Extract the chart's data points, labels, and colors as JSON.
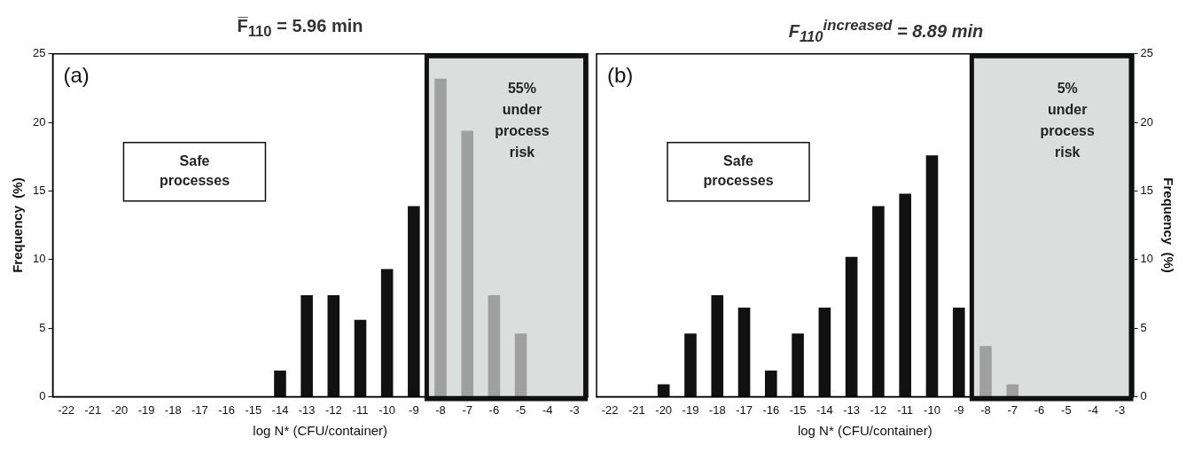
{
  "chart_data": [
    {
      "type": "bar",
      "title": "F̅$_{110}$ = 5.96  min",
      "xlabel": "log N* (CFU/container)",
      "ylabel": "Frequency  (%)",
      "x": [
        -22,
        -21,
        -20,
        -19,
        -18,
        -17,
        -16,
        -15,
        -14,
        -13,
        -12,
        -11,
        -10,
        -9,
        -8,
        -7,
        -6,
        -5,
        -4,
        -3
      ],
      "values": [
        0,
        0,
        0,
        0,
        0,
        0,
        0,
        0,
        1.9,
        7.4,
        7.4,
        5.6,
        9.3,
        13.9,
        23.2,
        19.4,
        7.4,
        4.6,
        0,
        0
      ],
      "colors": [
        "#111111",
        "#111111",
        "#111111",
        "#111111",
        "#111111",
        "#111111",
        "#111111",
        "#111111",
        "#111111",
        "#111111",
        "#111111",
        "#111111",
        "#111111",
        "#111111",
        "#a0a0a0",
        "#a0a0a0",
        "#a0a0a0",
        "#a0a0a0",
        "#a0a0a0",
        "#a0a0a0"
      ],
      "xlim": [
        -22.5,
        -2.5
      ],
      "xticks": [
        -22,
        -21,
        -20,
        -19,
        -18,
        -17,
        -16,
        -15,
        -14,
        -13,
        -12,
        -11,
        -10,
        -9,
        -8,
        -7,
        -6,
        -5,
        -4,
        -3
      ],
      "ylim": [
        0,
        25
      ],
      "yticks": [
        0,
        5,
        10,
        15,
        20,
        25
      ],
      "bands": [
        {
          "axis": "x",
          "from": -8.6,
          "to": -2.5,
          "label": "55% under process risk",
          "color": "#dcdddd"
        }
      ],
      "annotations": [
        "(a)",
        "Safe processes"
      ],
      "grid": false,
      "legend": false
    },
    {
      "type": "bar",
      "title": "F$_{110}$$^{increased}$ = 8.89  min",
      "xlabel": "log N* (CFU/container)",
      "ylabel": "Frequency  (%)",
      "x": [
        -22,
        -21,
        -20,
        -19,
        -18,
        -17,
        -16,
        -15,
        -14,
        -13,
        -12,
        -11,
        -10,
        -9,
        -8,
        -7,
        -6,
        -5,
        -4,
        -3
      ],
      "values": [
        0,
        0,
        0.9,
        4.6,
        7.4,
        6.5,
        1.9,
        4.6,
        6.5,
        10.2,
        13.9,
        14.8,
        17.6,
        6.5,
        3.7,
        0.9,
        0,
        0,
        0,
        0
      ],
      "colors": [
        "#111111",
        "#111111",
        "#111111",
        "#111111",
        "#111111",
        "#111111",
        "#111111",
        "#111111",
        "#111111",
        "#111111",
        "#111111",
        "#111111",
        "#111111",
        "#111111",
        "#a0a0a0",
        "#a0a0a0",
        "#a0a0a0",
        "#a0a0a0",
        "#a0a0a0",
        "#a0a0a0"
      ],
      "xlim": [
        -22.5,
        -2.5
      ],
      "xticks": [
        -22,
        -21,
        -20,
        -19,
        -18,
        -17,
        -16,
        -15,
        -14,
        -13,
        -12,
        -11,
        -10,
        -9,
        -8,
        -7,
        -6,
        -5,
        -4,
        -3
      ],
      "ylim": [
        0,
        25
      ],
      "yticks": [
        0,
        5,
        10,
        15,
        20,
        25
      ],
      "bands": [
        {
          "axis": "x",
          "from": -8.6,
          "to": -2.5,
          "label": "5% under process risk",
          "color": "#dcdddd"
        }
      ],
      "annotations": [
        "(b)",
        "Safe processes"
      ],
      "grid": false,
      "legend": false
    }
  ]
}
